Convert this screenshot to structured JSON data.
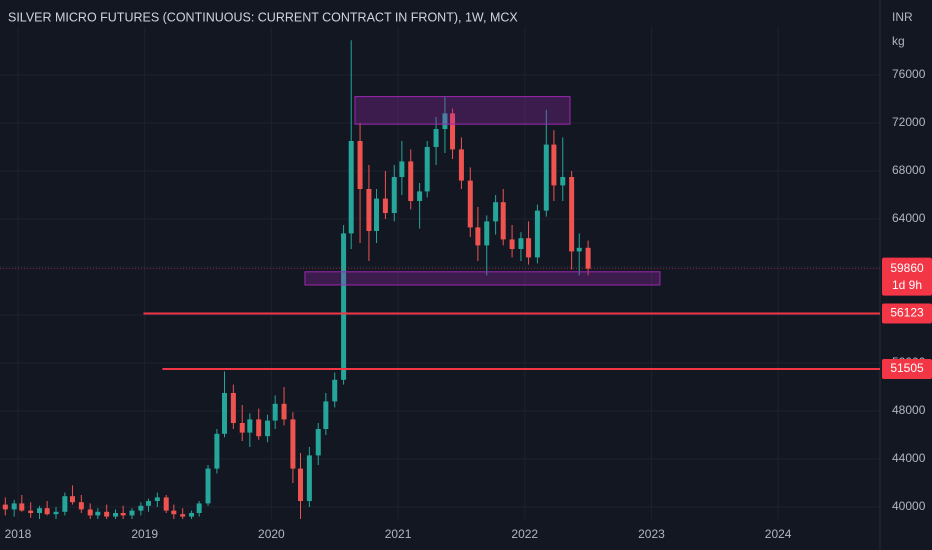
{
  "chart_data": {
    "type": "candlestick",
    "title": "SILVER MICRO FUTURES (CONTINUOUS: CURRENT CONTRACT IN FRONT), 1W, MCX",
    "unit_labels": [
      "INR",
      "kg"
    ],
    "up_color": "#26a69a",
    "down_color": "#ef5350",
    "xlim": [
      2017.858,
      2024.804
    ],
    "xticks": [
      2018,
      2019,
      2020,
      2021,
      2022,
      2023,
      2024
    ],
    "ylim": [
      39000,
      80000
    ],
    "yticks": [
      40000,
      44000,
      48000,
      52000,
      56000,
      60000,
      64000,
      68000,
      72000,
      76000
    ],
    "grid": true,
    "x": [
      2017.9,
      2017.97,
      2018.03,
      2018.1,
      2018.17,
      2018.23,
      2018.3,
      2018.37,
      2018.43,
      2018.5,
      2018.57,
      2018.63,
      2018.7,
      2018.77,
      2018.83,
      2018.9,
      2018.97,
      2019.03,
      2019.1,
      2019.17,
      2019.23,
      2019.3,
      2019.37,
      2019.43,
      2019.5,
      2019.57,
      2019.63,
      2019.7,
      2019.77,
      2019.83,
      2019.9,
      2019.97,
      2020.03,
      2020.1,
      2020.17,
      2020.23,
      2020.3,
      2020.37,
      2020.43,
      2020.5,
      2020.57,
      2020.63,
      2020.7,
      2020.77,
      2020.83,
      2020.9,
      2020.97,
      2021.03,
      2021.1,
      2021.17,
      2021.23,
      2021.3,
      2021.37,
      2021.43,
      2021.5,
      2021.57,
      2021.63,
      2021.7,
      2021.77,
      2021.83,
      2021.9,
      2021.97,
      2022.03,
      2022.1,
      2022.17,
      2022.23,
      2022.3,
      2022.37,
      2022.43,
      2022.5
    ],
    "open": [
      40200,
      39800,
      40300,
      39700,
      39500,
      39900,
      39400,
      39600,
      40900,
      40400,
      39800,
      39300,
      39600,
      39200,
      39500,
      39300,
      39700,
      40100,
      40500,
      40800,
      39700,
      39400,
      39200,
      39500,
      40300,
      43200,
      46100,
      49500,
      47000,
      46200,
      47300,
      45900,
      47200,
      48600,
      47300,
      43200,
      40500,
      44300,
      46500,
      48800,
      50600,
      62800,
      70500,
      66500,
      63000,
      65700,
      64500,
      67500,
      68800,
      65500,
      66300,
      70000,
      71500,
      72800,
      69800,
      67200,
      63300,
      61800,
      63800,
      65400,
      62300,
      61500,
      62400,
      60800,
      64700,
      70200,
      66800,
      67500,
      61300,
      61600
    ],
    "high": [
      40800,
      40600,
      41000,
      40400,
      40100,
      40500,
      40000,
      41200,
      41800,
      41000,
      40300,
      39900,
      40200,
      39800,
      40100,
      39900,
      40400,
      40700,
      41200,
      41000,
      40200,
      39900,
      39700,
      40500,
      43500,
      46500,
      51300,
      50200,
      48500,
      47800,
      48200,
      47700,
      49300,
      50000,
      47900,
      44500,
      45000,
      47000,
      49500,
      51200,
      63500,
      78900,
      72000,
      68500,
      66500,
      68000,
      68500,
      70500,
      69800,
      67000,
      70500,
      72500,
      74200,
      73200,
      70800,
      68300,
      65000,
      64300,
      66000,
      66500,
      63500,
      62900,
      63800,
      65200,
      73100,
      71400,
      70800,
      68000,
      62800,
      62200
    ],
    "low": [
      39300,
      39200,
      39600,
      39100,
      38900,
      39300,
      38800,
      39300,
      40200,
      39500,
      39000,
      38800,
      39000,
      38700,
      38900,
      38800,
      39300,
      39600,
      40000,
      39500,
      39000,
      38800,
      38700,
      39200,
      40100,
      42800,
      45800,
      46500,
      45500,
      45000,
      45600,
      45400,
      46500,
      46800,
      42000,
      38500,
      40000,
      43500,
      46000,
      48300,
      50200,
      61500,
      62000,
      60500,
      62000,
      64000,
      63800,
      66000,
      64800,
      63200,
      65800,
      68500,
      69500,
      69000,
      66500,
      62500,
      60500,
      59300,
      62700,
      61800,
      60800,
      60500,
      60200,
      60300,
      64200,
      65500,
      65500,
      59800,
      59300,
      59300
    ],
    "close": [
      39800,
      40300,
      39700,
      39500,
      39900,
      39400,
      39600,
      40900,
      40400,
      39800,
      39300,
      39600,
      39200,
      39500,
      39300,
      39700,
      40100,
      40500,
      40800,
      39700,
      39400,
      39200,
      39500,
      40300,
      43200,
      46100,
      49500,
      47000,
      46200,
      47300,
      45900,
      47200,
      48600,
      47300,
      43200,
      40500,
      44300,
      46500,
      48800,
      50600,
      62800,
      70500,
      66500,
      63000,
      65700,
      64500,
      67500,
      68800,
      65500,
      66300,
      70000,
      71500,
      72800,
      69800,
      67200,
      63300,
      61800,
      63800,
      65400,
      62300,
      61500,
      62400,
      60800,
      64700,
      70200,
      66800,
      67500,
      61300,
      61600,
      59860
    ],
    "zone_color": "#9c27b0",
    "zones": [
      {
        "x": [
          2020.66,
          2022.357
        ],
        "y": [
          71900,
          74200
        ]
      },
      {
        "x": [
          2020.265,
          2023.067
        ],
        "y": [
          58500,
          59600
        ]
      }
    ],
    "line_color": "#f23645",
    "price_lines": [
      {
        "value": 56123,
        "from": 2018.99
      },
      {
        "value": 51505,
        "from": 2019.14
      }
    ],
    "last_price": 59860,
    "countdown": "1d 9h"
  }
}
